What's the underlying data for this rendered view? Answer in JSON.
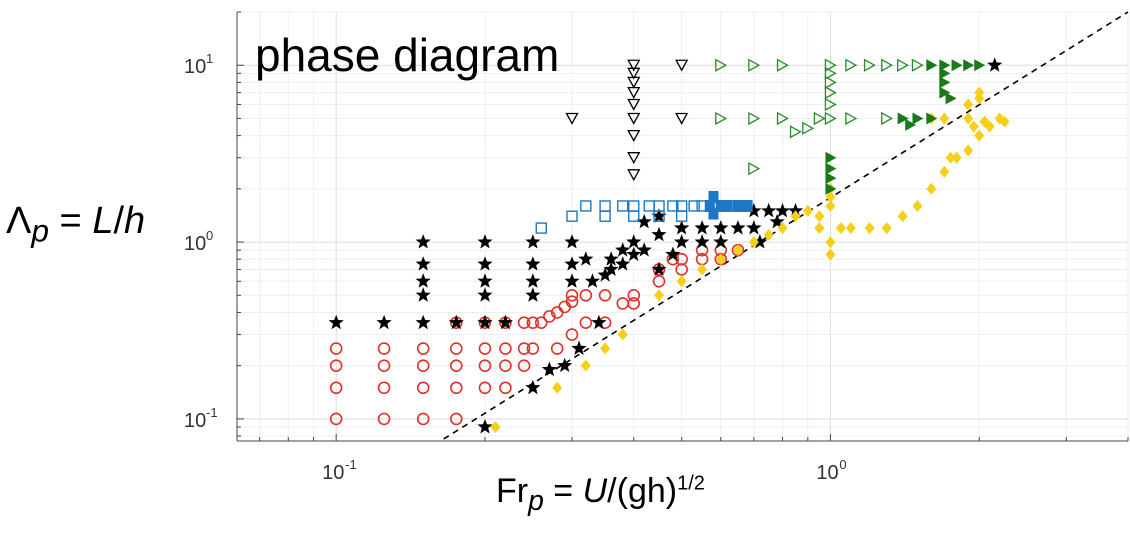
{
  "chart_data": {
    "type": "scatter",
    "title": "phase diagram",
    "xlabel": {
      "base": "Fr",
      "sub": "p",
      "eq": " = ",
      "var": "U",
      "rest": "/(gh)",
      "sup": "1/2"
    },
    "ylabel": {
      "base": "Λ",
      "sub": "p",
      "eq": " = ",
      "var1": "L",
      "slash": "/",
      "var2": "h"
    },
    "xscale": "log",
    "yscale": "log",
    "xlim": [
      0.063,
      4.0
    ],
    "ylim": [
      0.075,
      20
    ],
    "grid": true,
    "x_ticks": [
      {
        "value": 0.1,
        "base": "10",
        "exp": "-1"
      },
      {
        "value": 1,
        "base": "10",
        "exp": "0"
      }
    ],
    "y_ticks": [
      {
        "value": 0.1,
        "base": "10",
        "exp": "-1"
      },
      {
        "value": 1,
        "base": "10",
        "exp": "0"
      },
      {
        "value": 10,
        "base": "10",
        "exp": "1"
      }
    ],
    "reference_line": {
      "style": "dashed",
      "color": "#000000",
      "points": [
        [
          0.165,
          0.077
        ],
        [
          4.0,
          20.0
        ]
      ]
    },
    "series": [
      {
        "marker": "circle-open",
        "color": "#e0302a",
        "points": [
          [
            0.1,
            0.1
          ],
          [
            0.1,
            0.15
          ],
          [
            0.1,
            0.2
          ],
          [
            0.1,
            0.25
          ],
          [
            0.125,
            0.1
          ],
          [
            0.125,
            0.15
          ],
          [
            0.125,
            0.2
          ],
          [
            0.125,
            0.25
          ],
          [
            0.15,
            0.1
          ],
          [
            0.15,
            0.15
          ],
          [
            0.15,
            0.2
          ],
          [
            0.15,
            0.25
          ],
          [
            0.175,
            0.1
          ],
          [
            0.175,
            0.15
          ],
          [
            0.175,
            0.2
          ],
          [
            0.175,
            0.25
          ],
          [
            0.175,
            0.35
          ],
          [
            0.2,
            0.15
          ],
          [
            0.2,
            0.2
          ],
          [
            0.2,
            0.25
          ],
          [
            0.2,
            0.35
          ],
          [
            0.22,
            0.15
          ],
          [
            0.22,
            0.2
          ],
          [
            0.22,
            0.25
          ],
          [
            0.22,
            0.35
          ],
          [
            0.24,
            0.2
          ],
          [
            0.24,
            0.25
          ],
          [
            0.24,
            0.35
          ],
          [
            0.25,
            0.25
          ],
          [
            0.25,
            0.35
          ],
          [
            0.26,
            0.35
          ],
          [
            0.27,
            0.38
          ],
          [
            0.28,
            0.4
          ],
          [
            0.29,
            0.43
          ],
          [
            0.3,
            0.46
          ],
          [
            0.28,
            0.25
          ],
          [
            0.3,
            0.3
          ],
          [
            0.3,
            0.5
          ],
          [
            0.32,
            0.35
          ],
          [
            0.32,
            0.5
          ],
          [
            0.35,
            0.35
          ],
          [
            0.35,
            0.5
          ],
          [
            0.38,
            0.45
          ],
          [
            0.4,
            0.45
          ],
          [
            0.4,
            0.5
          ],
          [
            0.45,
            0.6
          ],
          [
            0.45,
            0.7
          ],
          [
            0.48,
            0.8
          ],
          [
            0.5,
            0.7
          ],
          [
            0.5,
            0.8
          ],
          [
            0.55,
            0.8
          ],
          [
            0.55,
            0.9
          ],
          [
            0.6,
            0.8
          ],
          [
            0.6,
            0.9
          ],
          [
            0.65,
            0.9
          ]
        ]
      },
      {
        "marker": "star",
        "color": "#000000",
        "points": [
          [
            0.1,
            0.35
          ],
          [
            0.125,
            0.35
          ],
          [
            0.15,
            0.35
          ],
          [
            0.175,
            0.35
          ],
          [
            0.2,
            0.35
          ],
          [
            0.22,
            0.35
          ],
          [
            0.15,
            0.5
          ],
          [
            0.15,
            0.6
          ],
          [
            0.15,
            0.75
          ],
          [
            0.15,
            1.0
          ],
          [
            0.2,
            0.5
          ],
          [
            0.2,
            0.6
          ],
          [
            0.2,
            0.75
          ],
          [
            0.2,
            1.0
          ],
          [
            0.25,
            0.5
          ],
          [
            0.25,
            0.6
          ],
          [
            0.25,
            0.75
          ],
          [
            0.25,
            1.0
          ],
          [
            0.3,
            0.6
          ],
          [
            0.3,
            0.75
          ],
          [
            0.3,
            1.0
          ],
          [
            0.2,
            0.09
          ],
          [
            0.25,
            0.15
          ],
          [
            0.27,
            0.19
          ],
          [
            0.29,
            0.2
          ],
          [
            0.31,
            0.25
          ],
          [
            0.34,
            0.35
          ],
          [
            0.33,
            0.6
          ],
          [
            0.35,
            0.65
          ],
          [
            0.36,
            0.7
          ],
          [
            0.38,
            0.75
          ],
          [
            0.38,
            0.9
          ],
          [
            0.4,
            0.85
          ],
          [
            0.4,
            1.0
          ],
          [
            0.42,
            0.9
          ],
          [
            0.45,
            1.1
          ],
          [
            0.45,
            0.7
          ],
          [
            0.48,
            0.85
          ],
          [
            0.5,
            1.0
          ],
          [
            0.5,
            1.2
          ],
          [
            0.55,
            1.0
          ],
          [
            0.55,
            1.2
          ],
          [
            0.6,
            1.0
          ],
          [
            0.6,
            1.2
          ],
          [
            0.65,
            1.2
          ],
          [
            0.7,
            1.2
          ],
          [
            0.7,
            1.5
          ],
          [
            0.75,
            1.5
          ],
          [
            0.8,
            1.5
          ],
          [
            0.85,
            1.5
          ],
          [
            0.72,
            1.0
          ],
          [
            0.42,
            1.3
          ],
          [
            0.45,
            1.4
          ],
          [
            0.32,
            0.8
          ],
          [
            0.36,
            0.8
          ],
          [
            0.78,
            1.3
          ],
          [
            2.15,
            10
          ]
        ]
      },
      {
        "marker": "diamond",
        "color": "#f5cf18",
        "points": [
          [
            0.21,
            0.09
          ],
          [
            0.28,
            0.15
          ],
          [
            0.32,
            0.2
          ],
          [
            0.35,
            0.25
          ],
          [
            0.38,
            0.3
          ],
          [
            0.45,
            0.5
          ],
          [
            0.5,
            0.6
          ],
          [
            0.55,
            0.7
          ],
          [
            0.6,
            0.8
          ],
          [
            0.65,
            0.9
          ],
          [
            0.7,
            1.0
          ],
          [
            0.75,
            1.1
          ],
          [
            0.8,
            1.2
          ],
          [
            0.85,
            1.4
          ],
          [
            0.9,
            1.5
          ],
          [
            1.0,
            1.6
          ],
          [
            1.0,
            1.8
          ],
          [
            1.0,
            2.0
          ],
          [
            0.95,
            1.4
          ],
          [
            0.95,
            1.2
          ],
          [
            1.0,
            1.0
          ],
          [
            1.0,
            0.85
          ],
          [
            1.05,
            1.2
          ],
          [
            1.1,
            1.2
          ],
          [
            1.2,
            1.2
          ],
          [
            1.3,
            1.2
          ],
          [
            1.4,
            1.4
          ],
          [
            1.5,
            1.6
          ],
          [
            1.6,
            2.0
          ],
          [
            1.7,
            2.5
          ],
          [
            1.8,
            3.0
          ],
          [
            1.9,
            3.3
          ],
          [
            2.0,
            4.0
          ],
          [
            2.1,
            4.5
          ],
          [
            2.2,
            5.0
          ],
          [
            2.25,
            4.8
          ],
          [
            1.9,
            5.0
          ],
          [
            1.9,
            6.0
          ],
          [
            2.0,
            7.0
          ],
          [
            2.0,
            6.5
          ],
          [
            1.75,
            3.0
          ],
          [
            1.6,
            5.0
          ],
          [
            1.7,
            5.0
          ],
          [
            2.05,
            4.8
          ],
          [
            1.95,
            4.5
          ]
        ]
      },
      {
        "marker": "square-open",
        "color": "#1f77c4",
        "points": [
          [
            0.26,
            1.2
          ],
          [
            0.3,
            1.4
          ],
          [
            0.32,
            1.6
          ],
          [
            0.35,
            1.4
          ],
          [
            0.35,
            1.6
          ],
          [
            0.38,
            1.6
          ],
          [
            0.4,
            1.6
          ],
          [
            0.43,
            1.6
          ],
          [
            0.45,
            1.6
          ],
          [
            0.48,
            1.6
          ],
          [
            0.5,
            1.6
          ],
          [
            0.53,
            1.6
          ],
          [
            0.55,
            1.6
          ],
          [
            0.4,
            1.4
          ],
          [
            0.45,
            1.4
          ],
          [
            0.5,
            1.4
          ]
        ]
      },
      {
        "marker": "square-filled",
        "color": "#1f77c4",
        "points": [
          [
            0.57,
            1.6
          ],
          [
            0.58,
            1.8
          ],
          [
            0.6,
            1.6
          ],
          [
            0.62,
            1.6
          ],
          [
            0.65,
            1.6
          ],
          [
            0.68,
            1.6
          ],
          [
            0.58,
            1.45
          ]
        ]
      },
      {
        "marker": "triangle-down-open",
        "color": "#000000",
        "points": [
          [
            0.3,
            5.0
          ],
          [
            0.4,
            3.0
          ],
          [
            0.4,
            4.0
          ],
          [
            0.4,
            5.0
          ],
          [
            0.4,
            6.0
          ],
          [
            0.4,
            7.0
          ],
          [
            0.4,
            8.0
          ],
          [
            0.4,
            9.0
          ],
          [
            0.4,
            10.0
          ],
          [
            0.5,
            5.0
          ],
          [
            0.5,
            10.0
          ],
          [
            0.4,
            2.4
          ]
        ]
      },
      {
        "marker": "triangle-right-open",
        "color": "#2a8a2a",
        "points": [
          [
            0.6,
            5.0
          ],
          [
            0.7,
            5.0
          ],
          [
            0.8,
            5.0
          ],
          [
            0.6,
            10.0
          ],
          [
            0.7,
            10.0
          ],
          [
            0.8,
            10.0
          ],
          [
            0.7,
            2.6
          ],
          [
            0.85,
            4.2
          ],
          [
            0.9,
            4.4
          ],
          [
            0.95,
            5.0
          ],
          [
            1.0,
            5.0
          ],
          [
            1.1,
            5.0
          ],
          [
            1.0,
            6.0
          ],
          [
            1.0,
            7.0
          ],
          [
            1.0,
            8.0
          ],
          [
            1.0,
            9.0
          ],
          [
            1.0,
            10.0
          ],
          [
            1.1,
            10.0
          ],
          [
            1.2,
            10.0
          ],
          [
            1.3,
            10.0
          ],
          [
            1.4,
            10.0
          ],
          [
            1.3,
            5.0
          ],
          [
            1.5,
            10.0
          ]
        ]
      },
      {
        "marker": "triangle-right-filled",
        "color": "#1a7a1a",
        "points": [
          [
            1.0,
            2.0
          ],
          [
            1.0,
            2.3
          ],
          [
            1.0,
            2.6
          ],
          [
            1.0,
            3.0
          ],
          [
            1.6,
            10.0
          ],
          [
            1.7,
            10.0
          ],
          [
            1.8,
            10.0
          ],
          [
            1.9,
            10.0
          ],
          [
            2.0,
            10.0
          ],
          [
            1.7,
            9.0
          ],
          [
            1.7,
            8.0
          ],
          [
            1.7,
            7.0
          ],
          [
            1.5,
            5.0
          ],
          [
            1.6,
            5.0
          ],
          [
            1.4,
            5.0
          ],
          [
            1.45,
            4.6
          ],
          [
            1.75,
            6.5
          ]
        ]
      }
    ]
  }
}
